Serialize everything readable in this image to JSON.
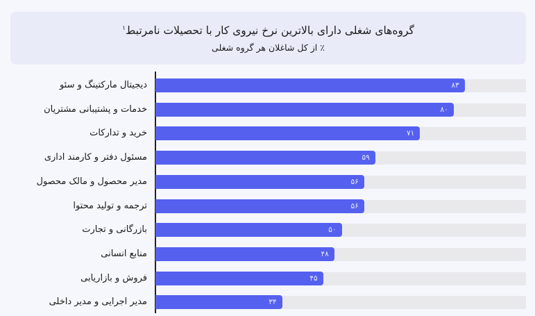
{
  "header": {
    "title": "گروه‌های شغلی دارای بالاترین نرخ نیروی کار با تحصیلات نامرتبط",
    "footnote_mark": "۱",
    "subtitle": "٪ از کل شاغلان هر گروه شغلی"
  },
  "colors": {
    "bar": "#5560ef",
    "track": "#e9e9ec",
    "header_bg": "#e9ebf8",
    "page_bg": "#f6f7fc"
  },
  "chart_data": {
    "type": "bar",
    "orientation": "horizontal",
    "title": "گروه‌های شغلی دارای بالاترین نرخ نیروی کار با تحصیلات نامرتبط",
    "subtitle": "٪ از کل شاغلان هر گروه شغلی",
    "xlabel": "",
    "ylabel": "",
    "xlim": [
      0,
      100
    ],
    "grid": false,
    "legend": null,
    "categories": [
      "دیجیتال مارکتینگ و سئو",
      "خدمات و پشتیبانی مشتریان",
      "خرید و تدارکات",
      "مسئول دفتر و کارمند اداری",
      "مدیر محصول و مالک محصول",
      "ترجمه و تولید محتوا",
      "بازرگانی و تجارت",
      "منابع انسانی",
      "فروش و بازاریابی",
      "مدیر اجرایی و مدیر داخلی"
    ],
    "values": [
      83,
      80,
      71,
      59,
      56,
      56,
      50,
      48,
      45,
      34
    ],
    "value_labels": [
      "۸۳",
      "۸۰",
      "۷۱",
      "۵۹",
      "۵۶",
      "۵۶",
      "۵۰",
      "۴۸",
      "۴۵",
      "۳۴"
    ]
  }
}
